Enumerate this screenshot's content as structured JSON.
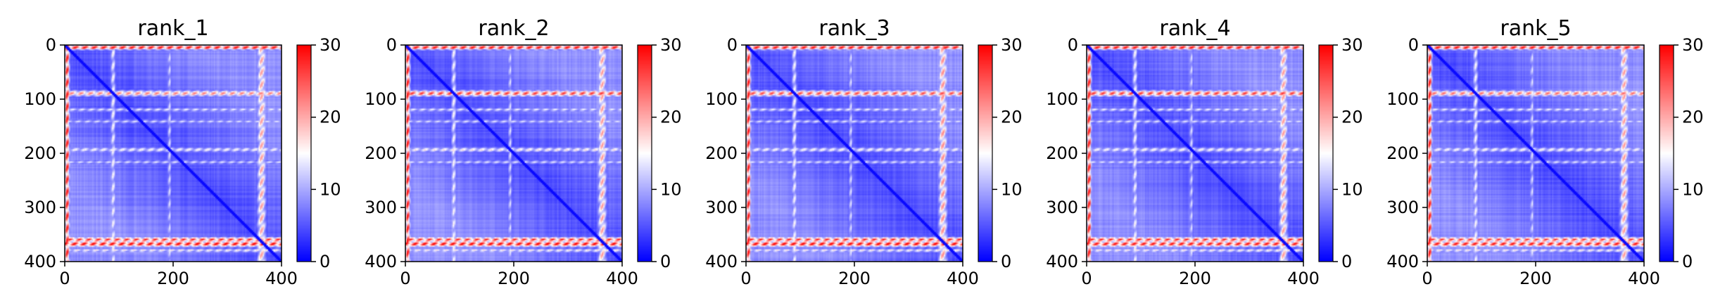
{
  "figure": {
    "background": "#ffffff",
    "colormap": [
      "#0000ff",
      "#ffffff",
      "#ff0000"
    ]
  },
  "chart_data": [
    {
      "type": "heatmap",
      "title": "rank_1",
      "xlim": [
        0,
        400
      ],
      "ylim": [
        400,
        0
      ],
      "xticks": [
        "0",
        "200",
        "400"
      ],
      "yticks": [
        "0",
        "100",
        "200",
        "300",
        "400"
      ],
      "colorbar": {
        "range": [
          0,
          30
        ],
        "ticks": [
          "0",
          "10",
          "20",
          "30"
        ]
      },
      "bands": {
        "rows": [
          {
            "center": 3,
            "width": 4,
            "value": 30
          },
          {
            "center": 88,
            "width": 5,
            "value": 22
          },
          {
            "center": 118,
            "width": 3,
            "value": 14
          },
          {
            "center": 140,
            "width": 3,
            "value": 13
          },
          {
            "center": 192,
            "width": 4,
            "value": 15
          },
          {
            "center": 215,
            "width": 3,
            "value": 13
          },
          {
            "center": 358,
            "width": 4,
            "value": 27
          },
          {
            "center": 366,
            "width": 5,
            "value": 29
          },
          {
            "center": 378,
            "width": 3,
            "value": 16
          }
        ],
        "cols": [
          {
            "center": 3,
            "width": 4,
            "value": 30
          },
          {
            "center": 88,
            "width": 4,
            "value": 15
          },
          {
            "center": 192,
            "width": 3,
            "value": 13
          },
          {
            "center": 362,
            "width": 7,
            "value": 20
          }
        ],
        "baseline": 3
      }
    },
    {
      "type": "heatmap",
      "title": "rank_2",
      "xlim": [
        0,
        400
      ],
      "ylim": [
        400,
        0
      ],
      "xticks": [
        "0",
        "200",
        "400"
      ],
      "yticks": [
        "0",
        "100",
        "200",
        "300",
        "400"
      ],
      "colorbar": {
        "range": [
          0,
          30
        ],
        "ticks": [
          "0",
          "10",
          "20",
          "30"
        ]
      },
      "bands": {
        "rows": [
          {
            "center": 3,
            "width": 4,
            "value": 30
          },
          {
            "center": 88,
            "width": 5,
            "value": 26
          },
          {
            "center": 118,
            "width": 3,
            "value": 14
          },
          {
            "center": 140,
            "width": 3,
            "value": 13
          },
          {
            "center": 192,
            "width": 4,
            "value": 16
          },
          {
            "center": 215,
            "width": 3,
            "value": 13
          },
          {
            "center": 358,
            "width": 4,
            "value": 27
          },
          {
            "center": 366,
            "width": 5,
            "value": 29
          },
          {
            "center": 378,
            "width": 3,
            "value": 16
          }
        ],
        "cols": [
          {
            "center": 3,
            "width": 4,
            "value": 30
          },
          {
            "center": 88,
            "width": 4,
            "value": 15
          },
          {
            "center": 192,
            "width": 3,
            "value": 13
          },
          {
            "center": 362,
            "width": 7,
            "value": 20
          }
        ],
        "baseline": 3
      }
    },
    {
      "type": "heatmap",
      "title": "rank_3",
      "xlim": [
        0,
        400
      ],
      "ylim": [
        400,
        0
      ],
      "xticks": [
        "0",
        "200",
        "400"
      ],
      "yticks": [
        "0",
        "100",
        "200",
        "300",
        "400"
      ],
      "colorbar": {
        "range": [
          0,
          30
        ],
        "ticks": [
          "0",
          "10",
          "20",
          "30"
        ]
      },
      "bands": {
        "rows": [
          {
            "center": 3,
            "width": 4,
            "value": 30
          },
          {
            "center": 88,
            "width": 5,
            "value": 25
          },
          {
            "center": 118,
            "width": 3,
            "value": 14
          },
          {
            "center": 140,
            "width": 3,
            "value": 13
          },
          {
            "center": 192,
            "width": 4,
            "value": 15
          },
          {
            "center": 215,
            "width": 3,
            "value": 13
          },
          {
            "center": 358,
            "width": 4,
            "value": 27
          },
          {
            "center": 366,
            "width": 5,
            "value": 29
          },
          {
            "center": 378,
            "width": 3,
            "value": 16
          }
        ],
        "cols": [
          {
            "center": 3,
            "width": 4,
            "value": 30
          },
          {
            "center": 88,
            "width": 4,
            "value": 15
          },
          {
            "center": 192,
            "width": 3,
            "value": 13
          },
          {
            "center": 362,
            "width": 7,
            "value": 21
          }
        ],
        "baseline": 3
      }
    },
    {
      "type": "heatmap",
      "title": "rank_4",
      "xlim": [
        0,
        400
      ],
      "ylim": [
        400,
        0
      ],
      "xticks": [
        "0",
        "200",
        "400"
      ],
      "yticks": [
        "0",
        "100",
        "200",
        "300",
        "400"
      ],
      "colorbar": {
        "range": [
          0,
          30
        ],
        "ticks": [
          "0",
          "10",
          "20",
          "30"
        ]
      },
      "bands": {
        "rows": [
          {
            "center": 3,
            "width": 4,
            "value": 30
          },
          {
            "center": 88,
            "width": 5,
            "value": 26
          },
          {
            "center": 118,
            "width": 3,
            "value": 14
          },
          {
            "center": 140,
            "width": 3,
            "value": 13
          },
          {
            "center": 192,
            "width": 4,
            "value": 15
          },
          {
            "center": 215,
            "width": 3,
            "value": 13
          },
          {
            "center": 358,
            "width": 4,
            "value": 27
          },
          {
            "center": 366,
            "width": 5,
            "value": 28
          },
          {
            "center": 378,
            "width": 3,
            "value": 16
          }
        ],
        "cols": [
          {
            "center": 3,
            "width": 4,
            "value": 30
          },
          {
            "center": 88,
            "width": 4,
            "value": 15
          },
          {
            "center": 192,
            "width": 3,
            "value": 13
          },
          {
            "center": 362,
            "width": 7,
            "value": 20
          }
        ],
        "baseline": 3
      }
    },
    {
      "type": "heatmap",
      "title": "rank_5",
      "xlim": [
        0,
        400
      ],
      "ylim": [
        400,
        0
      ],
      "xticks": [
        "0",
        "200",
        "400"
      ],
      "yticks": [
        "0",
        "100",
        "200",
        "300",
        "400"
      ],
      "colorbar": {
        "range": [
          0,
          30
        ],
        "ticks": [
          "0",
          "10",
          "20",
          "30"
        ]
      },
      "bands": {
        "rows": [
          {
            "center": 3,
            "width": 4,
            "value": 30
          },
          {
            "center": 88,
            "width": 5,
            "value": 23
          },
          {
            "center": 118,
            "width": 3,
            "value": 14
          },
          {
            "center": 140,
            "width": 3,
            "value": 13
          },
          {
            "center": 192,
            "width": 4,
            "value": 15
          },
          {
            "center": 215,
            "width": 3,
            "value": 13
          },
          {
            "center": 358,
            "width": 4,
            "value": 26
          },
          {
            "center": 366,
            "width": 5,
            "value": 28
          },
          {
            "center": 378,
            "width": 3,
            "value": 16
          }
        ],
        "cols": [
          {
            "center": 3,
            "width": 4,
            "value": 30
          },
          {
            "center": 88,
            "width": 4,
            "value": 15
          },
          {
            "center": 192,
            "width": 3,
            "value": 13
          },
          {
            "center": 362,
            "width": 7,
            "value": 20
          }
        ],
        "baseline": 3
      }
    }
  ]
}
